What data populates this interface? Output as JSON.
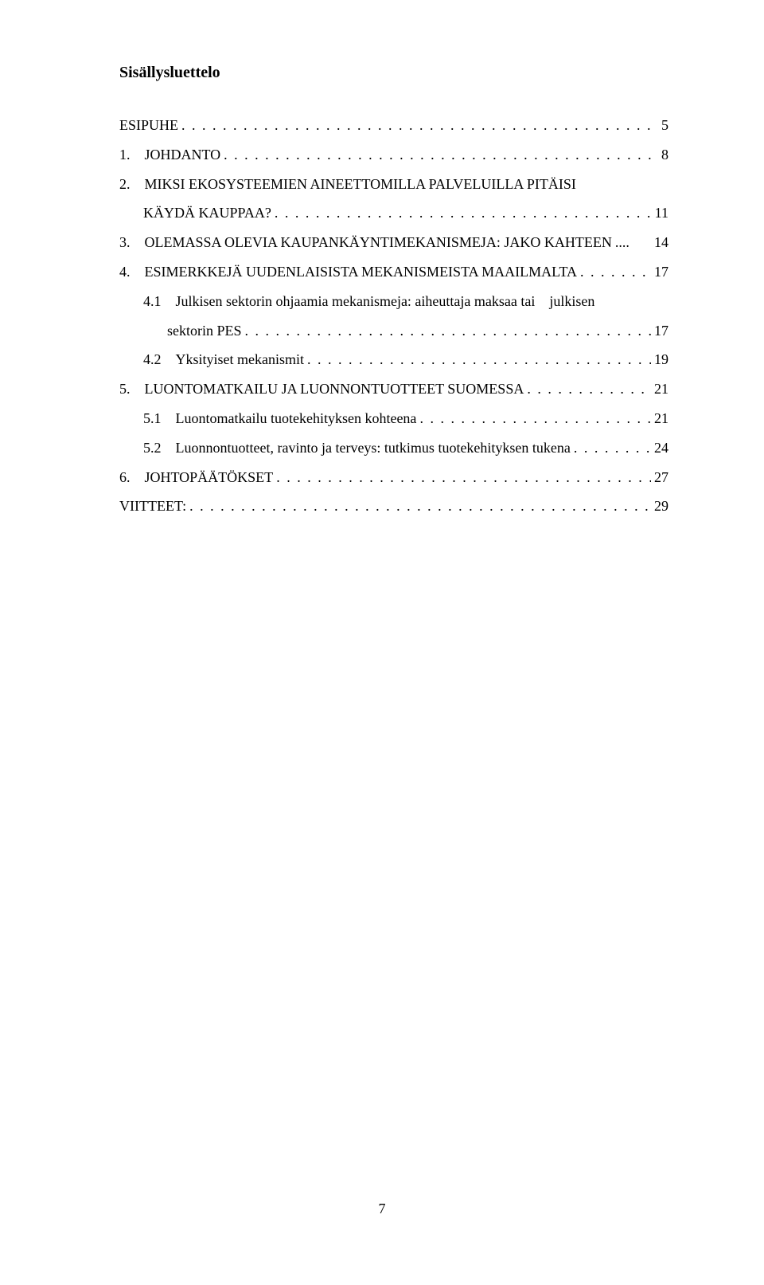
{
  "title": "Sisällysluettelo",
  "entries": [
    {
      "label": "ESIPUHE",
      "page": "5",
      "indent": 0
    },
    {
      "label": "1. JOHDANTO",
      "page": "8",
      "indent": 0
    },
    {
      "label_line1": "2. MIKSI EKOSYSTEEMIEN AINEETTOMILLA PALVELUILLA PITÄISI",
      "label_line2": "KÄYDÄ KAUPPAA?",
      "page": "11",
      "indent": 0,
      "multiline": true
    },
    {
      "label": "3. OLEMASSA OLEVIA KAUPANKÄYNTIMEKANISMEJA: JAKO KAHTEEN",
      "page": "14",
      "indent": 0,
      "tight": true
    },
    {
      "label": "4. ESIMERKKEJÄ UUDENLAISISTA MEKANISMEISTA MAAILMALTA",
      "page": "17",
      "indent": 0
    },
    {
      "label_line1": "4.1 Julkisen sektorin ohjaamia mekanismeja: aiheuttaja maksaa tai julkisen",
      "label_line2": "sektorin PES",
      "page": "17",
      "indent": 1,
      "multiline": true,
      "cont_indent": 2
    },
    {
      "label": "4.2 Yksityiset mekanismit",
      "page": "19",
      "indent": 1
    },
    {
      "label": "5. LUONTOMATKAILU JA LUONNONTUOTTEET SUOMESSA",
      "page": "21",
      "indent": 0
    },
    {
      "label": "5.1 Luontomatkailu tuotekehityksen kohteena",
      "page": "21",
      "indent": 1
    },
    {
      "label": "5.2 Luonnontuotteet, ravinto ja terveys: tutkimus tuotekehityksen tukena",
      "page": "24",
      "indent": 1
    },
    {
      "label": "6. JOHTOPÄÄTÖKSET",
      "page": "27",
      "indent": 0
    },
    {
      "label": "VIITTEET:",
      "page": "29",
      "indent": 0
    }
  ],
  "pageNumber": "7",
  "dotFill": ". . . . . . . . . . . . . . . . . . . . . . . . . . . . . . . . . . . . . . . . . . . . . . . . . . . . . . . . . . . . . . . . . . . . . . . . . . . . . . . . . . . . . . . . . . . . . . . . . . . . ."
}
